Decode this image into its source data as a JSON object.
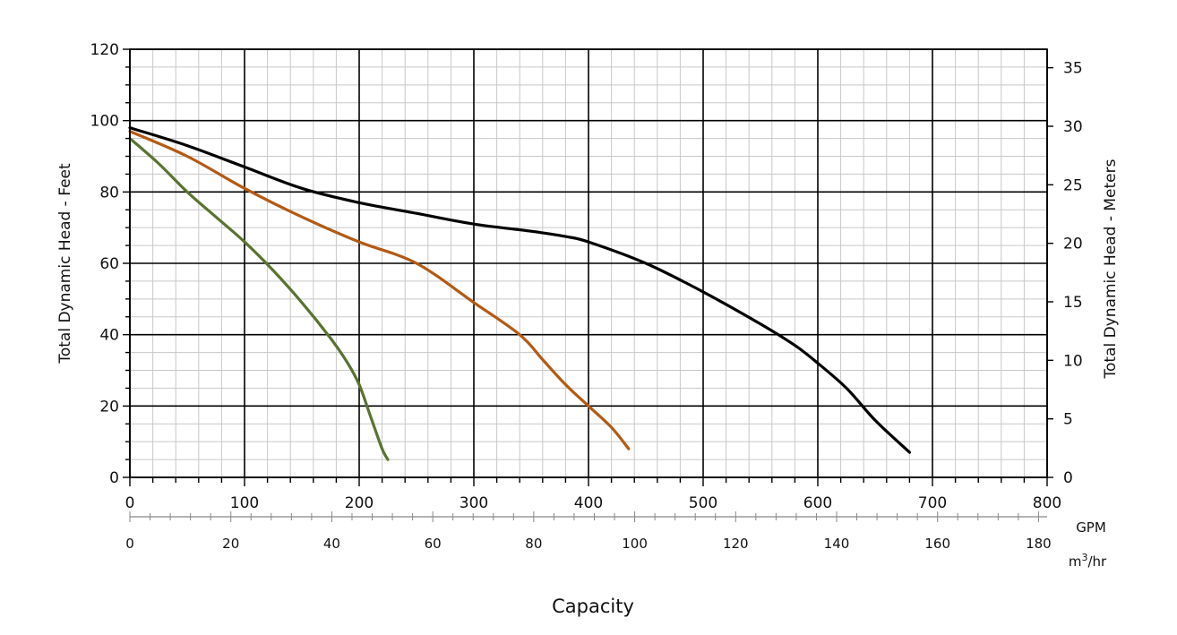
{
  "chart_data": {
    "type": "line",
    "title": "",
    "xlabel": "Capacity",
    "ylabel_left": "Total Dynamic Head - Feet",
    "ylabel_right": "Total Dynamic Head - Meters",
    "x_primary": {
      "unit": "GPM",
      "range": [
        0,
        800
      ],
      "ticks": [
        0,
        100,
        200,
        300,
        400,
        500,
        600,
        700,
        800
      ]
    },
    "x_secondary": {
      "unit_base": "m",
      "unit_sup": "3",
      "unit_tail": "/hr",
      "range": [
        0,
        181.7
      ],
      "ticks": [
        0,
        20,
        40,
        60,
        80,
        100,
        120,
        140,
        160,
        180
      ]
    },
    "y_left": {
      "unit": "Feet",
      "range": [
        0,
        120
      ],
      "ticks": [
        0,
        20,
        40,
        60,
        80,
        100,
        120
      ]
    },
    "y_right": {
      "unit": "Meters",
      "range": [
        0,
        36.58
      ],
      "ticks": [
        0,
        5,
        10,
        15,
        20,
        25,
        30,
        35
      ]
    },
    "grid": true,
    "series": [
      {
        "color": "#000000",
        "points": [
          [
            0,
            98
          ],
          [
            50,
            93
          ],
          [
            100,
            87
          ],
          [
            150,
            81
          ],
          [
            200,
            77
          ],
          [
            250,
            74
          ],
          [
            300,
            71
          ],
          [
            350,
            69
          ],
          [
            380,
            67.5
          ],
          [
            400,
            66
          ],
          [
            450,
            60
          ],
          [
            500,
            52
          ],
          [
            550,
            43
          ],
          [
            580,
            37
          ],
          [
            600,
            32
          ],
          [
            625,
            25
          ],
          [
            650,
            16
          ],
          [
            680,
            7
          ]
        ]
      },
      {
        "color": "#b35a14",
        "points": [
          [
            0,
            97
          ],
          [
            50,
            90
          ],
          [
            100,
            81
          ],
          [
            150,
            73
          ],
          [
            200,
            66
          ],
          [
            250,
            60
          ],
          [
            300,
            49
          ],
          [
            340,
            40
          ],
          [
            360,
            33
          ],
          [
            380,
            26
          ],
          [
            400,
            20
          ],
          [
            420,
            14
          ],
          [
            435,
            8
          ]
        ]
      },
      {
        "color": "#5a7330",
        "points": [
          [
            0,
            95
          ],
          [
            25,
            88
          ],
          [
            50,
            80
          ],
          [
            75,
            73
          ],
          [
            100,
            66
          ],
          [
            125,
            58
          ],
          [
            150,
            49
          ],
          [
            175,
            39
          ],
          [
            190,
            32
          ],
          [
            200,
            26
          ],
          [
            210,
            17
          ],
          [
            220,
            8
          ],
          [
            225,
            5
          ]
        ]
      }
    ]
  }
}
